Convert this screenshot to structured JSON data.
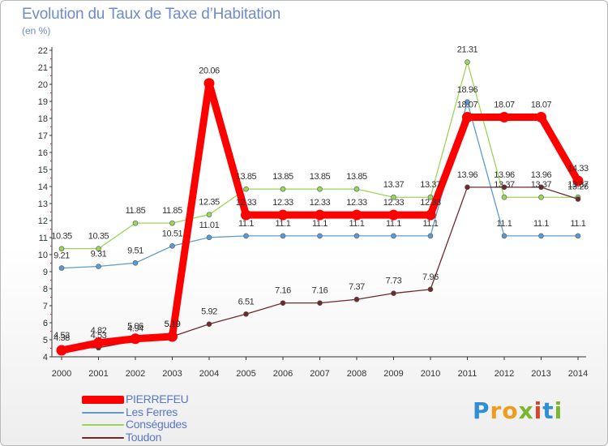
{
  "chart_data": {
    "type": "line",
    "title": "Evolution du Taux de Taxe d'Habitation",
    "subtitle": "(en %)",
    "x": [
      "2000",
      "2001",
      "2002",
      "2003",
      "2004",
      "2005",
      "2006",
      "2007",
      "2008",
      "2009",
      "2010",
      "2011",
      "2012",
      "2013",
      "2014"
    ],
    "y_ticks": [
      4,
      5,
      6,
      7,
      8,
      9,
      10,
      11,
      12,
      13,
      14,
      15,
      16,
      17,
      18,
      19,
      20,
      21,
      22
    ],
    "ylim": [
      4,
      22
    ],
    "grid": false,
    "legend_position": "bottom-left",
    "series": [
      {
        "name": "PIERREFEU",
        "color": "#ff0000",
        "values": [
          4.38,
          4.82,
          5.06,
          5.19,
          20.06,
          12.33,
          12.33,
          12.33,
          12.33,
          12.33,
          12.33,
          18.07,
          18.07,
          18.07,
          14.33
        ],
        "labels": [
          "4.38",
          "4.82",
          "5.06",
          "5.19",
          "20.06",
          "12.33",
          "12.33",
          "12.33",
          "12.33",
          "12.33",
          "12.33",
          "18.07",
          "18.07",
          "18.07",
          "14.33"
        ]
      },
      {
        "name": "Les Ferres",
        "color": "#5b9bd0",
        "values": [
          9.21,
          9.31,
          9.51,
          10.51,
          11.01,
          11.1,
          11.1,
          11.1,
          11.1,
          11.1,
          11.1,
          18.96,
          11.1,
          11.1,
          11.1
        ],
        "labels": [
          "9.21",
          "9.31",
          "9.51",
          "10.51",
          "11.01",
          "11.1",
          "11.1",
          "11.1",
          "11.1",
          "11.1",
          "11.1",
          "18.96",
          "11.1",
          "11.1",
          "11.1"
        ]
      },
      {
        "name": "Conségudes",
        "color": "#99d65c",
        "values": [
          10.35,
          10.35,
          11.85,
          11.85,
          12.35,
          13.85,
          13.85,
          13.85,
          13.85,
          13.37,
          13.37,
          21.31,
          13.37,
          13.37,
          13.37
        ],
        "labels": [
          "10.35",
          "10.35",
          "11.85",
          "11.85",
          "12.35",
          "13.85",
          "13.85",
          "13.85",
          "13.85",
          "13.37",
          "13.37",
          "21.31",
          "13.37",
          "13.37",
          "13.37"
        ]
      },
      {
        "name": "Toudon",
        "color": "#6e2a2a",
        "values": [
          4.53,
          4.53,
          4.94,
          5.19,
          5.92,
          6.51,
          7.16,
          7.16,
          7.37,
          7.73,
          7.96,
          13.96,
          13.96,
          13.96,
          13.26
        ],
        "labels": [
          "4.53",
          "4.53",
          "4.94",
          "5.19",
          "5.92",
          "6.51",
          "7.16",
          "7.16",
          "7.37",
          "7.73",
          "7.96",
          "13.96",
          "13.96",
          "13.96",
          "13.26"
        ]
      }
    ]
  },
  "header": {
    "title": "Evolution du Taux de Taxe d’Habitation",
    "unit": "(en %)"
  },
  "legend": {
    "items": [
      {
        "label": "PIERREFEU",
        "color": "#ff0000"
      },
      {
        "label": "Les Ferres",
        "color": "#5b9bd0"
      },
      {
        "label": "Conségudes",
        "color": "#99d65c"
      },
      {
        "label": "Toudon",
        "color": "#6e2a2a"
      }
    ]
  },
  "logo": {
    "text": "Proxiti",
    "letters": [
      "P",
      "r",
      "o",
      "x",
      "i",
      "t",
      "i"
    ],
    "colors": [
      "#2e8fd6",
      "#f09a1e",
      "#f09a1e",
      "#79b82c",
      "#d9432b",
      "#2e8fd6",
      "#79b82c"
    ]
  }
}
